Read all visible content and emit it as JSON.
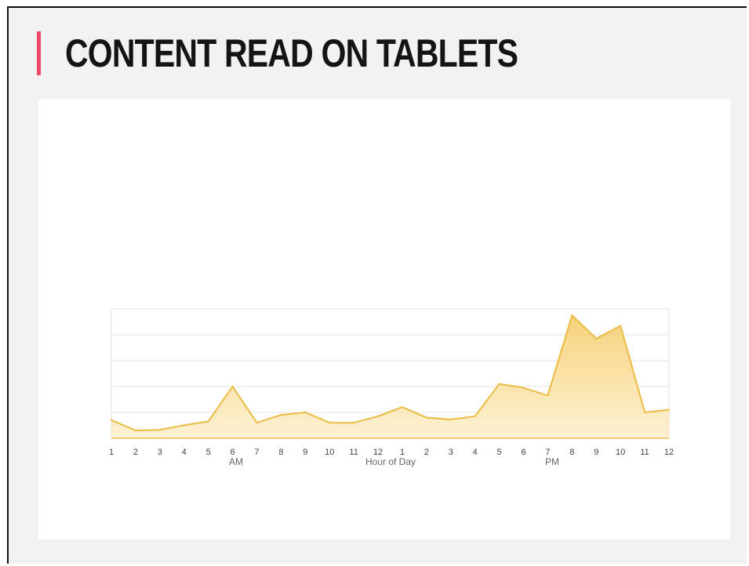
{
  "slide": {
    "title": "CONTENT READ ON TABLETS",
    "accent_color": "#f0466a"
  },
  "chart_data": {
    "type": "area",
    "x": [
      "1",
      "2",
      "3",
      "4",
      "5",
      "6",
      "7",
      "8",
      "9",
      "10",
      "11",
      "12",
      "1",
      "2",
      "3",
      "4",
      "5",
      "6",
      "7",
      "8",
      "9",
      "10",
      "11",
      "12"
    ],
    "values": [
      0.14,
      0.06,
      0.065,
      0.1,
      0.13,
      0.4,
      0.12,
      0.18,
      0.2,
      0.12,
      0.12,
      0.17,
      0.24,
      0.16,
      0.145,
      0.17,
      0.42,
      0.39,
      0.33,
      0.95,
      0.77,
      0.87,
      0.2,
      0.22
    ],
    "ylim": [
      0,
      1
    ],
    "xlabel": "Hour of Day",
    "period_labels": [
      "AM",
      "PM"
    ],
    "grid": true,
    "line_color": "#ecbc45",
    "fill_color": "#fbe3a8"
  }
}
